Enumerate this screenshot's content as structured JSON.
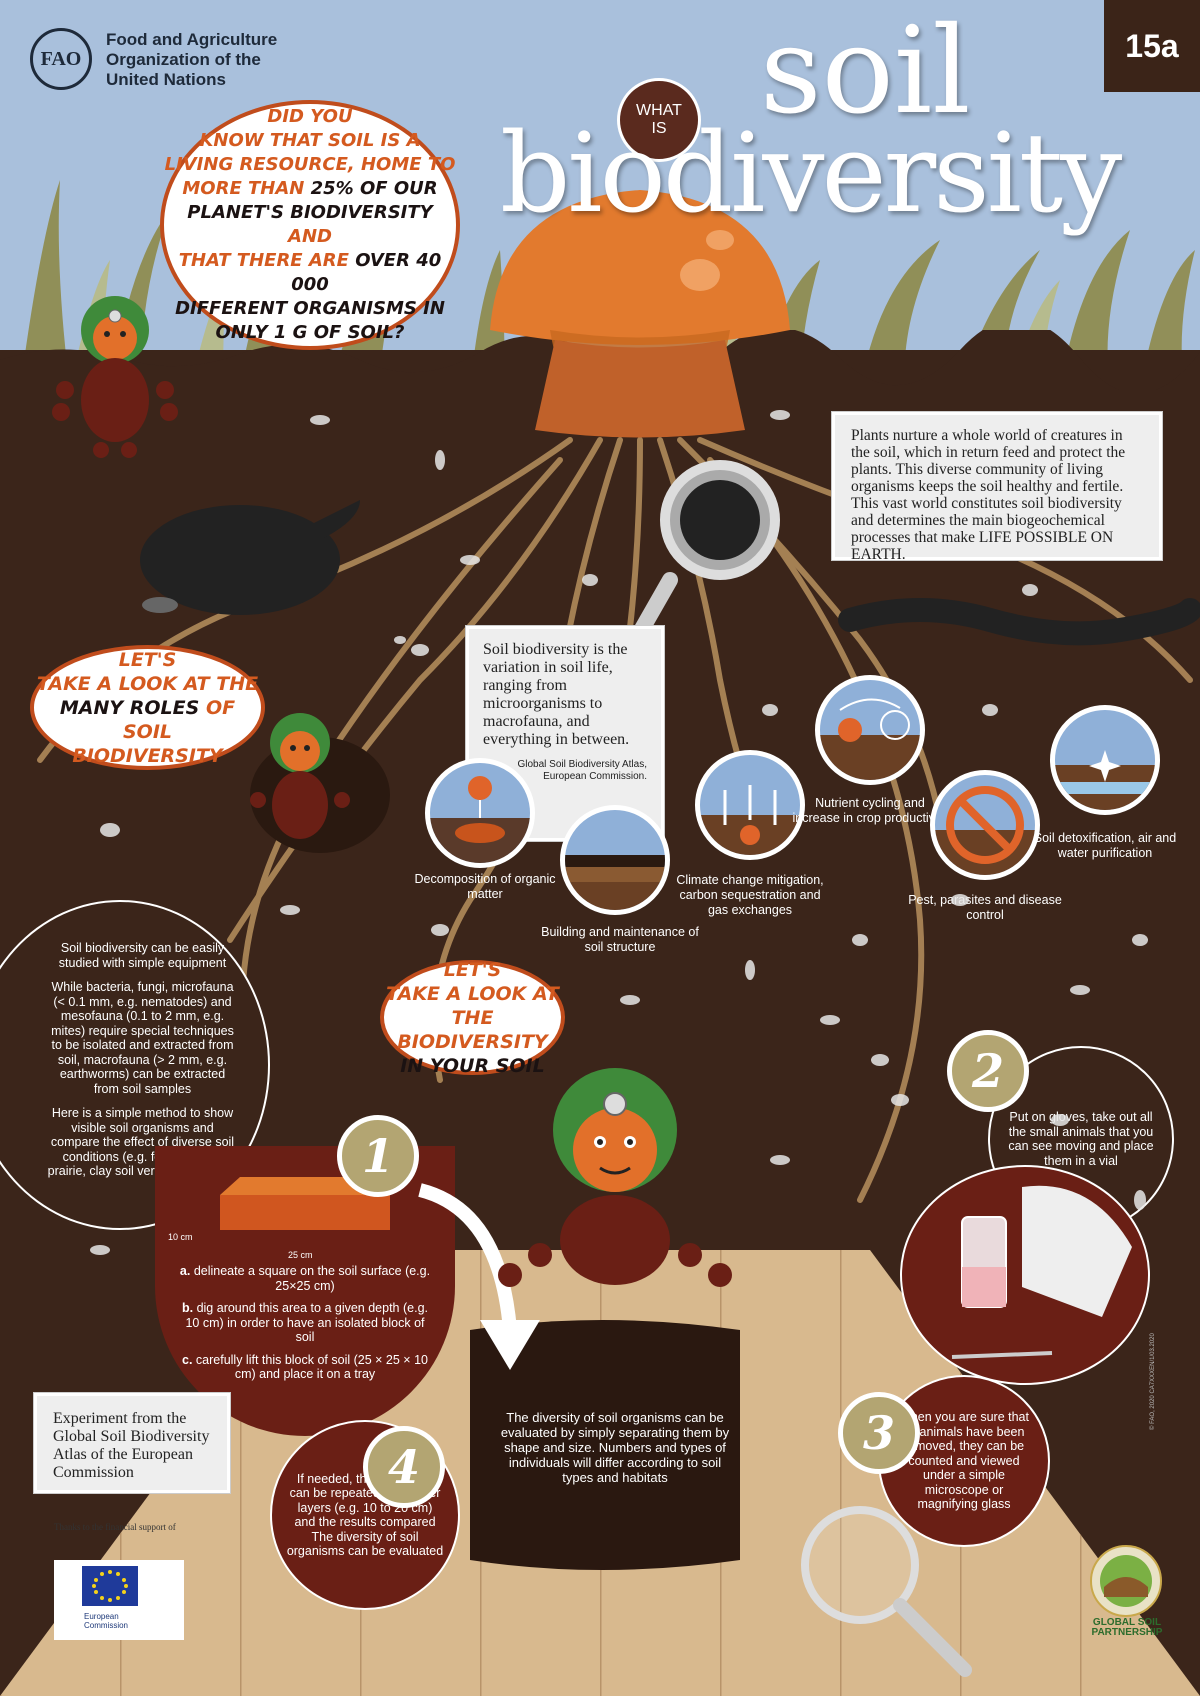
{
  "header": {
    "org_line1": "Food and Agriculture",
    "org_line2": "Organization of the",
    "org_line3": "United Nations",
    "logo_letters": "FAO",
    "badge": "15a"
  },
  "title": {
    "what_line1": "WHAT",
    "what_line2": "IS",
    "word1": "soil",
    "word2": "biodiversity"
  },
  "bubbles": {
    "did_you_know": {
      "l1": "DID YOU",
      "l2": "KNOW THAT SOIL IS A",
      "l3": "LIVING RESOURCE, HOME TO",
      "l4a": "MORE THAN ",
      "l4b": "25% OF OUR",
      "l5a": "PLANET'S BIODIVERSITY",
      "l5b": " AND",
      "l6a": "THAT THERE ARE ",
      "l6b": "OVER 40 000",
      "l7": "DIFFERENT ORGANISMS IN",
      "l8": "ONLY 1 G OF SOIL?"
    },
    "roles": {
      "l1": "LET'S",
      "l2": "TAKE A LOOK AT THE",
      "l3a": "MANY ROLES",
      "l3b": " OF SOIL",
      "l4": "BIODIVERSITY"
    },
    "your_soil": {
      "l1": "LET'S",
      "l2": "TAKE A LOOK AT",
      "l3": "THE BIODIVERSITY",
      "l4": "IN YOUR SOIL"
    }
  },
  "intro": {
    "text": "Plants nurture a whole world of creatures in the soil, which in return feed and protect the plants. This diverse community of living organisms keeps the soil healthy and fertile. This vast world constitutes soil biodiversity and determines the main biogeochemical processes that make ",
    "caps": "LIFE POSSIBLE ON EARTH."
  },
  "definition": {
    "text": "Soil biodiversity is the variation in soil life, ranging from microorganisms to macrofauna, and everything in between.",
    "cite": "Global Soil Biodiversity Atlas, European Commission."
  },
  "roles": [
    {
      "label": "Decomposition of organic matter"
    },
    {
      "label": "Building and maintenance of soil structure"
    },
    {
      "label": "Climate change mitigation, carbon sequestration and gas exchanges"
    },
    {
      "label": "Nutrient cycling and increase in crop productivity"
    },
    {
      "label": "Pest, parasites and disease control"
    },
    {
      "label": "Soil detoxification, air and water purification"
    }
  ],
  "study_tip": {
    "p1": "Soil biodiversity can be easily studied with simple equipment",
    "p2": "While bacteria, fungi, microfauna (< 0.1 mm, e.g. nematodes) and mesofauna (0.1 to 2 mm, e.g. mites) require special techniques to be isolated and extracted from soil, macrofauna (> 2 mm, e.g. earthworms) can be extracted from soil samples",
    "p3": "Here is a simple method to show visible soil organisms and compare the effect of diverse soil conditions (e.g. forest versus prairie, clay soil versus sandy soil)"
  },
  "steps": {
    "step1": {
      "number": "1",
      "depth_label": "10 cm",
      "width_label": "25 cm",
      "a_key": "a.",
      "a_text": " delineate a square on the soil surface (e.g. 25×25 cm)",
      "b_key": "b.",
      "b_text": " dig around this area to a given depth (e.g. 10 cm) in order to have an isolated block of soil",
      "c_key": "c.",
      "c_text": " carefully lift this block of soil (25 × 25 × 10 cm) and place it on a tray"
    },
    "step2": {
      "number": "2",
      "text": "Put on gloves, take out all the small animals that you can see moving and place them in a vial"
    },
    "step3": {
      "number": "3",
      "text": "When you are sure that all animals have been removed, they can be counted and viewed under a simple microscope or magnifying glass"
    },
    "step4": {
      "number": "4",
      "text": "If needed, the procedure can be repeated for deeper layers (e.g. 10 to 20 cm) and the results compared The diversity of soil organisms can be evaluated"
    }
  },
  "tray_text": "The diversity of soil organisms can be evaluated by simply separating them by shape and size. Numbers and types of individuals will differ according to soil types and habitats",
  "experiment_box": "Experiment from the Global Soil Biodiversity Atlas of the European Commission",
  "footer": {
    "thanks": "Thanks to the financial support of",
    "eu_line1": "European",
    "eu_line2": "Commission",
    "gsp_line1": "GLOBAL SOIL",
    "gsp_line2": "PARTNERSHIP",
    "copyright": "© FAO, 2020 CA7XXXEN/1/03.2020"
  },
  "colors": {
    "sky": "#a9c0dc",
    "soil": "#3b251a",
    "accent_orange": "#d45a1f",
    "step_red": "#6a1f15",
    "number_gold": "#b3a572"
  }
}
